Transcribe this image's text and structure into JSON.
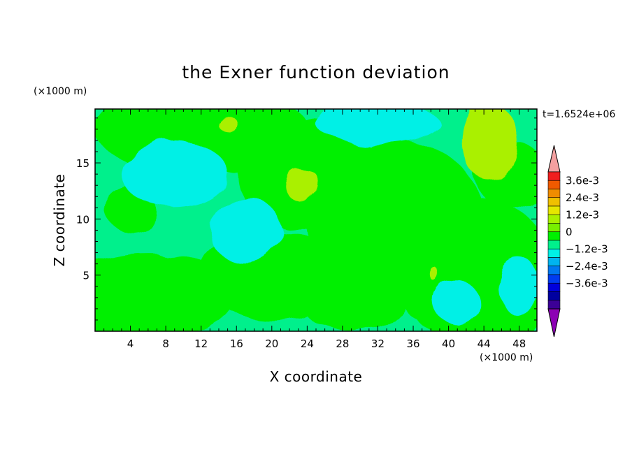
{
  "chart_data": {
    "type": "heatmap",
    "title": "the Exner function deviation",
    "xlabel": "X coordinate",
    "ylabel": "Z coordinate",
    "x_unit": "(×1000 m)",
    "z_unit": "(×1000 m)",
    "time_label": "t=1.6524e+06",
    "xlim": [
      0,
      50
    ],
    "ylim": [
      0,
      19.8
    ],
    "x_ticks": [
      "4",
      "8",
      "12",
      "16",
      "20",
      "24",
      "28",
      "32",
      "36",
      "40",
      "44",
      "48"
    ],
    "y_ticks": [
      "5",
      "10",
      "15"
    ],
    "colorbar": {
      "labels": [
        "3.6e-3",
        "2.4e-3",
        "1.2e-3",
        "0",
        "−1.2e-3",
        "−2.4e-3",
        "−3.6e-3"
      ],
      "colors": [
        "#f4a0a0",
        "#f01e1e",
        "#f05a00",
        "#f08c00",
        "#f0c000",
        "#e6e600",
        "#aaf000",
        "#78f000",
        "#00f000",
        "#00f08c",
        "#00f0e6",
        "#00b4f0",
        "#0078f0",
        "#003cf0",
        "#0000dc",
        "#0000a0",
        "#3c0096",
        "#8c00b4"
      ]
    },
    "field_levels": {
      "pos_light": "#aaf000",
      "pos": "#00f000",
      "zero_neg": "#00f08c",
      "neg": "#00f0e6"
    }
  }
}
